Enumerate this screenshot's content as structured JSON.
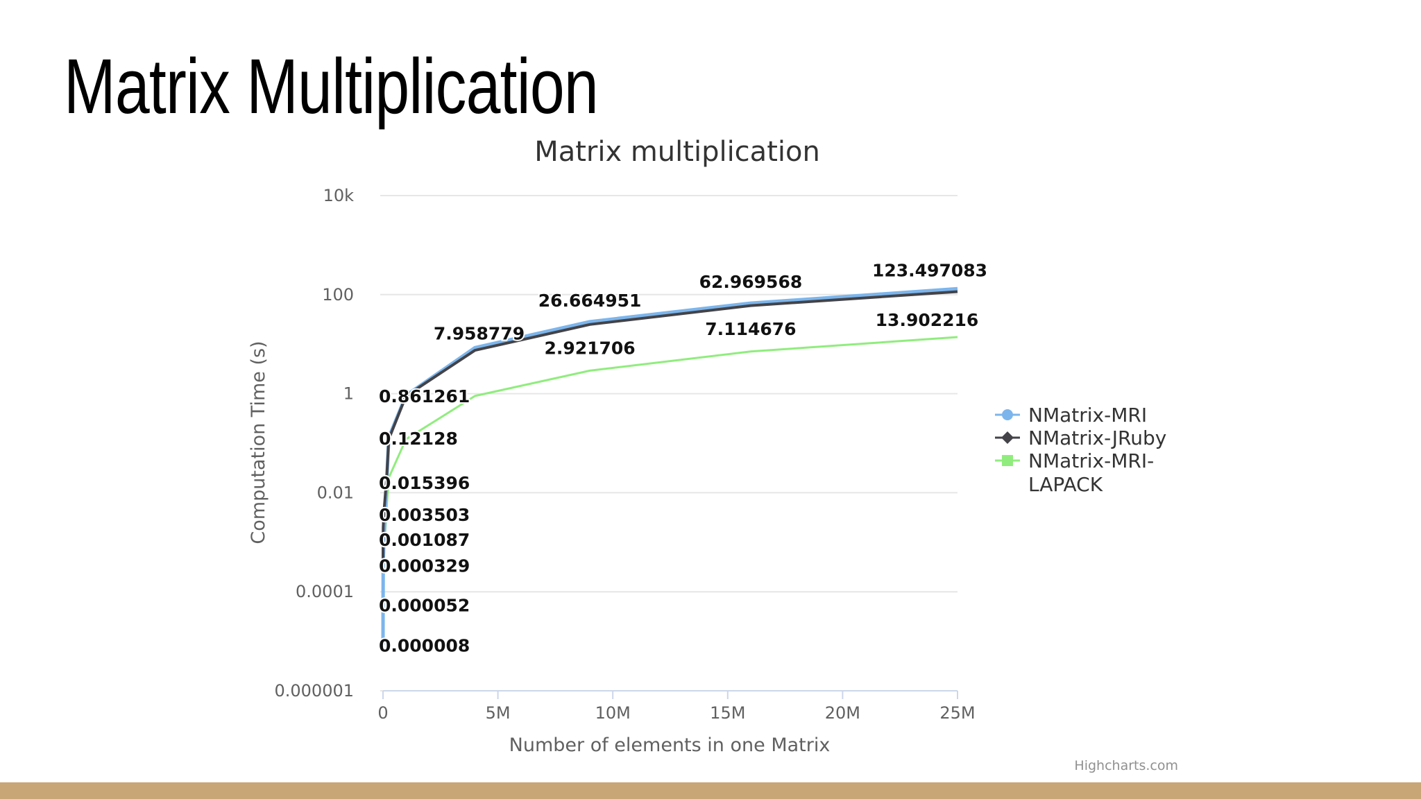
{
  "slide": {
    "title": "Matrix Multiplication",
    "bar_color": "#C9A676"
  },
  "chart_data": {
    "type": "line",
    "title": "Matrix multiplication",
    "xlabel": "Number of elements in one Matrix",
    "ylabel": "Computation Time (s)",
    "y_scale": "log",
    "xlim": [
      0,
      25000000
    ],
    "ylim": [
      1e-06,
      10000
    ],
    "x_ticks": [
      {
        "value": 0,
        "label": "0"
      },
      {
        "value": 5000000,
        "label": "5M"
      },
      {
        "value": 10000000,
        "label": "10M"
      },
      {
        "value": 15000000,
        "label": "15M"
      },
      {
        "value": 20000000,
        "label": "20M"
      },
      {
        "value": 25000000,
        "label": "25M"
      }
    ],
    "y_ticks": [
      {
        "value": 1e-06,
        "label": "0.000001"
      },
      {
        "value": 0.0001,
        "label": "0.0001"
      },
      {
        "value": 0.01,
        "label": "0.01"
      },
      {
        "value": 1,
        "label": "1"
      },
      {
        "value": 100,
        "label": "100"
      },
      {
        "value": 10000,
        "label": "10k"
      }
    ],
    "grid": true,
    "legend_position": "right",
    "series": [
      {
        "name": "NMatrix-MRI",
        "color": "#7CB5EC",
        "marker": "circle",
        "x": [
          100,
          2500,
          10000,
          40000,
          90000,
          160000,
          250000,
          1000000,
          4000000,
          9000000,
          16000000,
          25000000
        ],
        "y": [
          8e-06,
          5.2e-05,
          0.000329,
          0.001087,
          0.003503,
          0.015396,
          0.12128,
          0.861261,
          7.958779,
          26.664951,
          62.969568,
          123.497083
        ]
      },
      {
        "name": "NMatrix-JRuby",
        "color": "#434348",
        "marker": "diamond",
        "x": [
          100,
          2500,
          10000,
          40000,
          90000,
          160000,
          250000,
          1000000,
          4000000,
          9000000,
          16000000,
          25000000
        ],
        "y": [
          0.0003,
          0.0009,
          0.002,
          0.004,
          0.008,
          0.02,
          0.12,
          0.9,
          7.5,
          25,
          60,
          115
        ]
      },
      {
        "name": "NMatrix-MRI-LAPACK",
        "legend_lines": [
          "NMatrix-MRI-",
          "LAPACK"
        ],
        "color": "#90ED7D",
        "marker": "square",
        "x": [
          100,
          2500,
          10000,
          40000,
          90000,
          160000,
          250000,
          1000000,
          4000000,
          9000000,
          16000000,
          25000000
        ],
        "y": [
          2e-05,
          6e-05,
          0.0002,
          0.0005,
          0.0015,
          0.005,
          0.02,
          0.12,
          0.9,
          2.921706,
          7.114676,
          13.902216
        ]
      }
    ],
    "data_labels": [
      {
        "series": 0,
        "index": 0,
        "text": "0.000008"
      },
      {
        "series": 0,
        "index": 1,
        "text": "0.000052"
      },
      {
        "series": 0,
        "index": 2,
        "text": "0.000329"
      },
      {
        "series": 0,
        "index": 3,
        "text": "0.001087"
      },
      {
        "series": 0,
        "index": 4,
        "text": "0.003503"
      },
      {
        "series": 0,
        "index": 5,
        "text": "0.015396"
      },
      {
        "series": 0,
        "index": 6,
        "text": "0.12128"
      },
      {
        "series": 0,
        "index": 7,
        "text": "0.861261"
      },
      {
        "series": 0,
        "index": 8,
        "text": "7.958779"
      },
      {
        "series": 0,
        "index": 9,
        "text": "26.664951"
      },
      {
        "series": 0,
        "index": 10,
        "text": "62.969568"
      },
      {
        "series": 0,
        "index": 11,
        "text": "123.497083"
      },
      {
        "series": 2,
        "index": 9,
        "text": "2.921706"
      },
      {
        "series": 2,
        "index": 10,
        "text": "7.114676"
      },
      {
        "series": 2,
        "index": 11,
        "text": "13.902216"
      }
    ],
    "credits": "Highcharts.com"
  }
}
